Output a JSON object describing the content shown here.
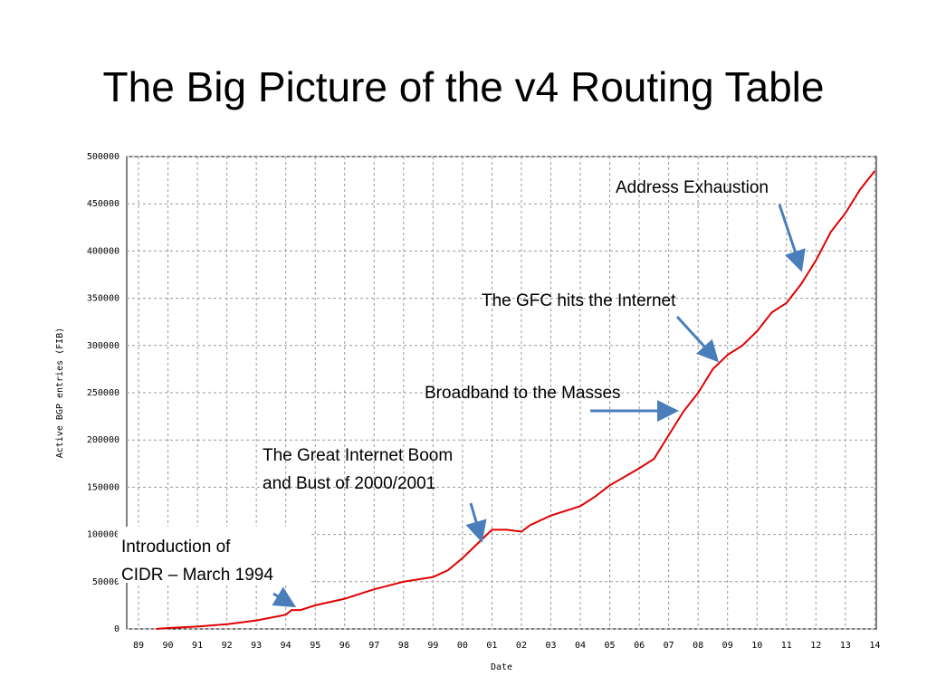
{
  "chart_data": {
    "type": "line",
    "title": "The Big Picture of the v4 Routing Table",
    "x_label": "Date",
    "y_label": "Active BGP entries (FIB)",
    "x": [
      1989.6,
      1990,
      1991,
      1992,
      1993,
      1994,
      1994.2,
      1994.5,
      1995,
      1996,
      1997,
      1998,
      1999,
      1999.5,
      2000,
      2000.5,
      2001,
      2001.5,
      2002,
      2002.3,
      2003,
      2004,
      2004.5,
      2005,
      2006,
      2006.5,
      2007,
      2007.5,
      2008,
      2008.5,
      2009,
      2009.5,
      2010,
      2010.5,
      2011,
      2011.5,
      2012,
      2012.5,
      2013,
      2013.5,
      2014
    ],
    "series": [
      {
        "name": "Active BGP entries (FIB)",
        "color": "#e00000",
        "values": [
          0,
          1000,
          2500,
          5000,
          9000,
          15000,
          20000,
          20000,
          25000,
          32000,
          42000,
          50000,
          55000,
          62000,
          75000,
          90000,
          105000,
          105000,
          103000,
          110000,
          120000,
          130000,
          140000,
          152000,
          170000,
          180000,
          205000,
          230000,
          250000,
          275000,
          290000,
          300000,
          315000,
          335000,
          345000,
          365000,
          390000,
          420000,
          440000,
          465000,
          485000
        ]
      }
    ],
    "xlim": [
      1988.6,
      2014.05
    ],
    "xticks": [
      {
        "value": 1989,
        "label": "89"
      },
      {
        "value": 1990,
        "label": "90"
      },
      {
        "value": 1991,
        "label": "91"
      },
      {
        "value": 1992,
        "label": "92"
      },
      {
        "value": 1993,
        "label": "93"
      },
      {
        "value": 1994,
        "label": "94"
      },
      {
        "value": 1995,
        "label": "95"
      },
      {
        "value": 1996,
        "label": "96"
      },
      {
        "value": 1997,
        "label": "97"
      },
      {
        "value": 1998,
        "label": "98"
      },
      {
        "value": 1999,
        "label": "99"
      },
      {
        "value": 2000,
        "label": "00"
      },
      {
        "value": 2001,
        "label": "01"
      },
      {
        "value": 2002,
        "label": "02"
      },
      {
        "value": 2003,
        "label": "03"
      },
      {
        "value": 2004,
        "label": "04"
      },
      {
        "value": 2005,
        "label": "05"
      },
      {
        "value": 2006,
        "label": "06"
      },
      {
        "value": 2007,
        "label": "07"
      },
      {
        "value": 2008,
        "label": "08"
      },
      {
        "value": 2009,
        "label": "09"
      },
      {
        "value": 2010,
        "label": "10"
      },
      {
        "value": 2011,
        "label": "11"
      },
      {
        "value": 2012,
        "label": "12"
      },
      {
        "value": 2013,
        "label": "13"
      },
      {
        "value": 2014,
        "label": "14"
      }
    ],
    "ylim": [
      0,
      500000
    ],
    "yticks": [
      0,
      50000,
      100000,
      150000,
      200000,
      250000,
      300000,
      350000,
      400000,
      450000,
      500000
    ],
    "grid": true,
    "annotations": [
      "Address Exhaustion",
      "The GFC hits the Internet",
      "Broadband to the Masses",
      "The Great Internet Boom",
      "and Bust of 2000/2001",
      "Introduction of",
      "CIDR – March 1994"
    ]
  }
}
